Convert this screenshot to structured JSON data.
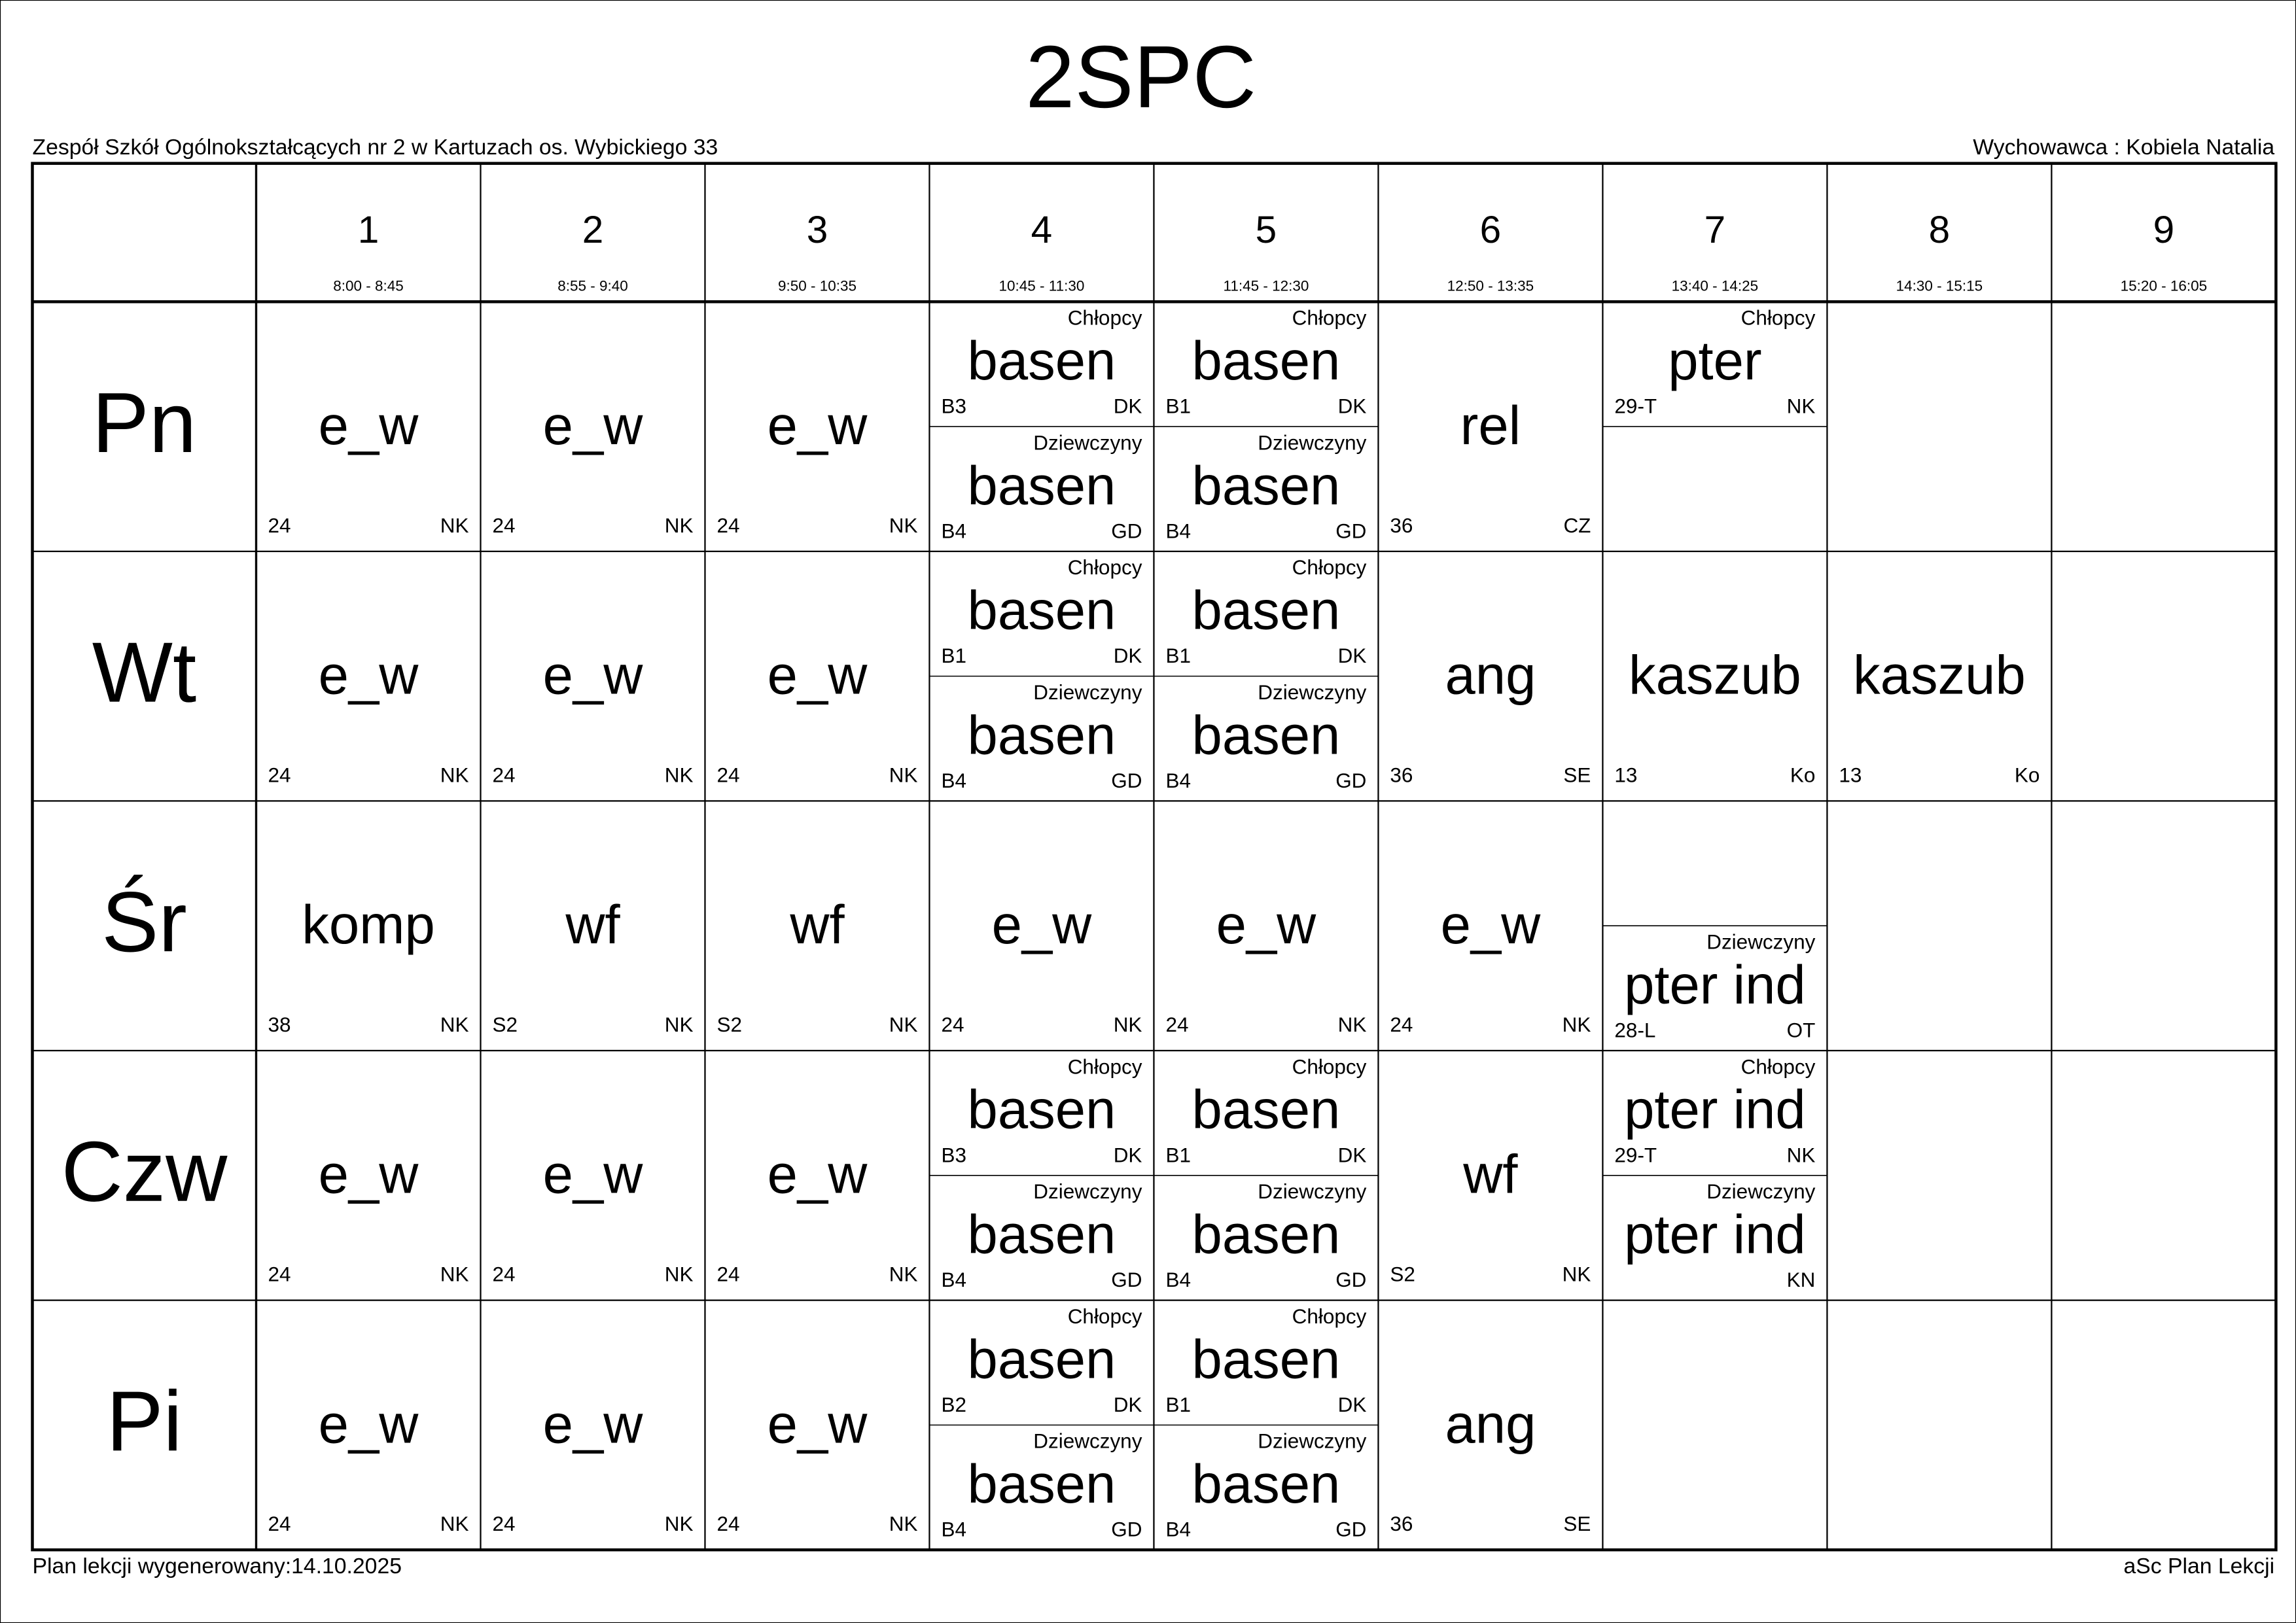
{
  "title": "2SPC",
  "school": "Zespół Szkół Ogólnokształcących nr 2 w Kartuzach os. Wybickiego 33",
  "teacher": "Wychowawca : Kobiela Natalia",
  "periods": [
    {
      "number": 1,
      "time": "8:00 - 8:45"
    },
    {
      "number": 2,
      "time": "8:55 - 9:40"
    },
    {
      "number": 3,
      "time": "9:50 - 10:35"
    },
    {
      "number": 4,
      "time": "10:45 - 11:30"
    },
    {
      "number": 5,
      "time": "11:45 - 12:30"
    },
    {
      "number": 6,
      "time": "12:50 - 13:35"
    },
    {
      "number": 7,
      "time": "13:40 - 14:25"
    },
    {
      "number": 8,
      "time": "14:30 - 15:15"
    },
    {
      "number": 9,
      "time": "15:20 - 16:05"
    }
  ],
  "days": [
    {
      "name": "Pn",
      "cells": [
        {
          "subject": "e_w",
          "room": "24",
          "teacher": "NK"
        },
        {
          "subject": "e_w",
          "room": "24",
          "teacher": "NK"
        },
        {
          "subject": "e_w",
          "room": "24",
          "teacher": "NK"
        },
        {
          "top": {
            "group": "Chłopcy",
            "subject": "basen",
            "room": "B3",
            "teacher": "DK"
          },
          "bottom": {
            "group": "Dziewczyny",
            "subject": "basen",
            "room": "B4",
            "teacher": "GD"
          }
        },
        {
          "top": {
            "group": "Chłopcy",
            "subject": "basen",
            "room": "B1",
            "teacher": "DK"
          },
          "bottom": {
            "group": "Dziewczyny",
            "subject": "basen",
            "room": "B4",
            "teacher": "GD"
          }
        },
        {
          "subject": "rel",
          "room": "36",
          "teacher": "CZ"
        },
        {
          "top": {
            "group": "Chłopcy",
            "subject": "pter",
            "room": "29-T",
            "teacher": "NK"
          }
        },
        null,
        null
      ]
    },
    {
      "name": "Wt",
      "cells": [
        {
          "subject": "e_w",
          "room": "24",
          "teacher": "NK"
        },
        {
          "subject": "e_w",
          "room": "24",
          "teacher": "NK"
        },
        {
          "subject": "e_w",
          "room": "24",
          "teacher": "NK"
        },
        {
          "top": {
            "group": "Chłopcy",
            "subject": "basen",
            "room": "B1",
            "teacher": "DK"
          },
          "bottom": {
            "group": "Dziewczyny",
            "subject": "basen",
            "room": "B4",
            "teacher": "GD"
          }
        },
        {
          "top": {
            "group": "Chłopcy",
            "subject": "basen",
            "room": "B1",
            "teacher": "DK"
          },
          "bottom": {
            "group": "Dziewczyny",
            "subject": "basen",
            "room": "B4",
            "teacher": "GD"
          }
        },
        {
          "subject": "ang",
          "room": "36",
          "teacher": "SE"
        },
        {
          "subject": "kaszub",
          "room": "13",
          "teacher": "Ko"
        },
        {
          "subject": "kaszub",
          "room": "13",
          "teacher": "Ko"
        },
        null
      ]
    },
    {
      "name": "Śr",
      "cells": [
        {
          "subject": "komp",
          "room": "38",
          "teacher": "NK"
        },
        {
          "subject": "wf",
          "room": "S2",
          "teacher": "NK"
        },
        {
          "subject": "wf",
          "room": "S2",
          "teacher": "NK"
        },
        {
          "subject": "e_w",
          "room": "24",
          "teacher": "NK"
        },
        {
          "subject": "e_w",
          "room": "24",
          "teacher": "NK"
        },
        {
          "subject": "e_w",
          "room": "24",
          "teacher": "NK"
        },
        {
          "bottom": {
            "group": "Dziewczyny",
            "subject": "pter ind",
            "room": "28-L",
            "teacher": "OT"
          }
        },
        null,
        null
      ]
    },
    {
      "name": "Czw",
      "cells": [
        {
          "subject": "e_w",
          "room": "24",
          "teacher": "NK"
        },
        {
          "subject": "e_w",
          "room": "24",
          "teacher": "NK"
        },
        {
          "subject": "e_w",
          "room": "24",
          "teacher": "NK"
        },
        {
          "top": {
            "group": "Chłopcy",
            "subject": "basen",
            "room": "B3",
            "teacher": "DK"
          },
          "bottom": {
            "group": "Dziewczyny",
            "subject": "basen",
            "room": "B4",
            "teacher": "GD"
          }
        },
        {
          "top": {
            "group": "Chłopcy",
            "subject": "basen",
            "room": "B1",
            "teacher": "DK"
          },
          "bottom": {
            "group": "Dziewczyny",
            "subject": "basen",
            "room": "B4",
            "teacher": "GD"
          }
        },
        {
          "subject": "wf",
          "room": "S2",
          "teacher": "NK"
        },
        {
          "top": {
            "group": "Chłopcy",
            "subject": "pter ind",
            "room": "29-T",
            "teacher": "NK"
          },
          "bottom": {
            "group": "Dziewczyny",
            "subject": "pter ind",
            "teacher": "KN"
          }
        },
        null,
        null
      ]
    },
    {
      "name": "Pi",
      "cells": [
        {
          "subject": "e_w",
          "room": "24",
          "teacher": "NK"
        },
        {
          "subject": "e_w",
          "room": "24",
          "teacher": "NK"
        },
        {
          "subject": "e_w",
          "room": "24",
          "teacher": "NK"
        },
        {
          "top": {
            "group": "Chłopcy",
            "subject": "basen",
            "room": "B2",
            "teacher": "DK"
          },
          "bottom": {
            "group": "Dziewczyny",
            "subject": "basen",
            "room": "B4",
            "teacher": "GD"
          }
        },
        {
          "top": {
            "group": "Chłopcy",
            "subject": "basen",
            "room": "B1",
            "teacher": "DK"
          },
          "bottom": {
            "group": "Dziewczyny",
            "subject": "basen",
            "room": "B4",
            "teacher": "GD"
          }
        },
        {
          "subject": "ang",
          "room": "36",
          "teacher": "SE"
        },
        null,
        null,
        null
      ]
    }
  ],
  "footer": {
    "generated": "Plan lekcji wygenerowany:14.10.2025",
    "software": "aSc Plan Lekcji"
  }
}
